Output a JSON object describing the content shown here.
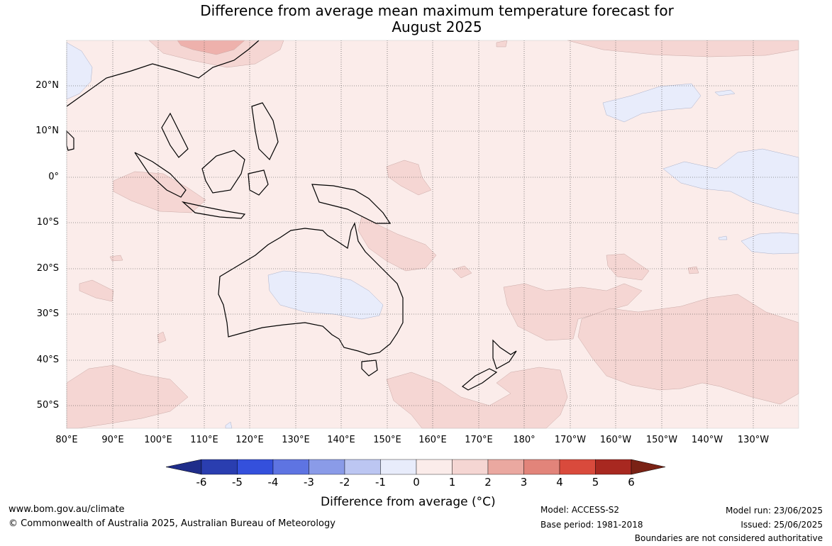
{
  "title_line1": "Difference from average mean maximum temperature forecast for",
  "title_line2": "August 2025",
  "lat_labels": [
    "20°N",
    "10°N",
    "0°",
    "10°S",
    "20°S",
    "30°S",
    "40°S",
    "50°S"
  ],
  "lon_labels": [
    "80°E",
    "90°E",
    "100°E",
    "110°E",
    "120°E",
    "130°E",
    "140°E",
    "150°E",
    "160°E",
    "170°E",
    "180°",
    "170°W",
    "160°W",
    "150°W",
    "140°W",
    "130°W"
  ],
  "colorbar": {
    "ticks": [
      "-6",
      "-5",
      "-4",
      "-3",
      "-2",
      "-1",
      "0",
      "1",
      "2",
      "3",
      "4",
      "5",
      "6"
    ],
    "colors": [
      "#1f2d8a",
      "#2a3eb0",
      "#3450dc",
      "#5e74e2",
      "#8a9be8",
      "#bcc6f2",
      "#e8ecfb",
      "#fbecea",
      "#f5d6d3",
      "#eaa8a0",
      "#e2847a",
      "#d94a3c",
      "#a82820",
      "#7a2215"
    ],
    "label": "Difference from average (°C)"
  },
  "map_colors": {
    "base": "#fbecea",
    "warm1": "#f5d6d3",
    "warm2": "#eeb1ac",
    "cool1": "#e8ecfb",
    "cool2": "#cdd6f4",
    "land_outline": "#000000",
    "border": "#7a7a7a",
    "grid": "#3a3a3a"
  },
  "footer": {
    "url": "www.bom.gov.au/climate",
    "copyright": "© Commonwealth of Australia 2025, Australian Bureau of Meteorology",
    "model": "Model: ACCESS-S2",
    "base_period": "Base period: 1981-2018",
    "model_run": "Model run: 23/06/2025",
    "issued": "Issued: 25/06/2025",
    "disclaimer": "Boundaries are not considered authoritative"
  }
}
